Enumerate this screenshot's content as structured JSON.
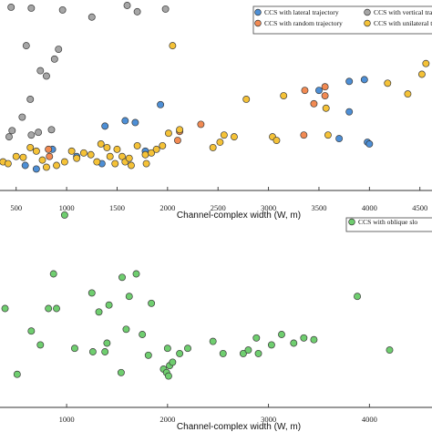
{
  "chart_data": [
    {
      "type": "scatter",
      "xlabel": "Channel-complex width (W, m)",
      "xlim": [
        340,
        4620
      ],
      "ylim": [
        0,
        205
      ],
      "xticks": [
        500,
        1000,
        1500,
        2000,
        2500,
        3000,
        3500,
        4000,
        4500
      ],
      "tick_labels": [
        "500",
        "1000",
        "1500",
        "2000",
        "2500",
        "3000",
        "3500",
        "4000",
        "4500"
      ],
      "legend_position": "top-right",
      "series": [
        {
          "name": "CCS with lateral trajectory",
          "color": "#4d8fd6",
          "x": [
            340,
            590,
            700,
            860,
            1100,
            1350,
            1380,
            1580,
            1680,
            1780,
            1930,
            3500,
            3700,
            3800,
            3800,
            3950,
            3980,
            4000
          ],
          "y": [
            68,
            26,
            22,
            44,
            36,
            28,
            70,
            76,
            74,
            42,
            94,
            110,
            56,
            120,
            86,
            122,
            52,
            50
          ]
        },
        {
          "name": "CCS with vertical trajectory",
          "color": "#a6a6a6",
          "x": [
            450,
            650,
            960,
            1250,
            1600,
            1700,
            1980,
            600,
            740,
            880,
            920,
            800,
            430,
            460,
            560,
            650,
            720,
            850,
            640
          ],
          "y": [
            203,
            202,
            200,
            192,
            205,
            198,
            201,
            160,
            132,
            145,
            156,
            126,
            58,
            65,
            80,
            60,
            63,
            66,
            100
          ]
        },
        {
          "name": "CCS with random trajectory",
          "color": "#f28a52",
          "x": [
            820,
            830,
            2100,
            2120,
            2330,
            3350,
            3360,
            3450,
            3560,
            3560
          ],
          "y": [
            44,
            36,
            54,
            64,
            72,
            60,
            110,
            95,
            114,
            104
          ]
        },
        {
          "name": "CCS with unilateral trajectory",
          "color": "#f5c237",
          "x": [
            370,
            420,
            500,
            570,
            640,
            700,
            760,
            800,
            900,
            980,
            1050,
            1100,
            1170,
            1240,
            1300,
            1340,
            1400,
            1430,
            1480,
            1500,
            1550,
            1580,
            1620,
            1640,
            1700,
            1780,
            1790,
            1840,
            1890,
            1950,
            2010,
            2050,
            2120,
            2450,
            2520,
            2560,
            2660,
            2780,
            3040,
            3080,
            3150,
            3570,
            3590,
            4180,
            4380,
            4520,
            4560
          ],
          "y": [
            30,
            28,
            36,
            35,
            46,
            42,
            32,
            24,
            26,
            30,
            42,
            34,
            40,
            38,
            30,
            50,
            46,
            36,
            28,
            44,
            36,
            30,
            34,
            26,
            48,
            38,
            28,
            40,
            44,
            48,
            62,
            160,
            66,
            46,
            52,
            60,
            58,
            100,
            58,
            54,
            104,
            90,
            60,
            118,
            106,
            128,
            140
          ]
        }
      ]
    },
    {
      "type": "scatter",
      "xlabel": "Channel-complex width (W, m)",
      "xlim": [
        340,
        4620
      ],
      "ylim": [
        0,
        110
      ],
      "xticks": [
        1000,
        2000,
        3000,
        4000
      ],
      "tick_labels": [
        "1000",
        "2000",
        "3000",
        "4000"
      ],
      "legend_position": "top-right",
      "series": [
        {
          "name": "CCS with oblique slo",
          "color": "#6fce6f",
          "x": [
            980,
            870,
            1690,
            1550,
            1250,
            1620,
            1840,
            390,
            820,
            900,
            1320,
            1420,
            3880,
            350,
            650,
            1590,
            1750,
            2880,
            3130,
            3350,
            4620,
            350,
            740,
            1080,
            1260,
            1380,
            1400,
            1810,
            2000,
            2120,
            2200,
            2450,
            2550,
            2750,
            2800,
            2900,
            3030,
            3250,
            3450,
            4200,
            1960,
            2020,
            2050,
            1990,
            510,
            1540,
            2010
          ],
          "y": [
            109,
            75,
            75,
            73,
            64,
            62,
            58,
            55,
            55,
            55,
            53,
            57,
            62,
            42,
            42,
            43,
            40,
            38,
            40,
            38,
            72,
            34,
            34,
            32,
            30,
            30,
            35,
            28,
            32,
            29,
            32,
            36,
            29,
            29,
            31,
            29,
            34,
            35,
            37,
            31,
            20,
            22,
            24,
            18,
            17,
            18,
            16
          ]
        }
      ]
    }
  ]
}
